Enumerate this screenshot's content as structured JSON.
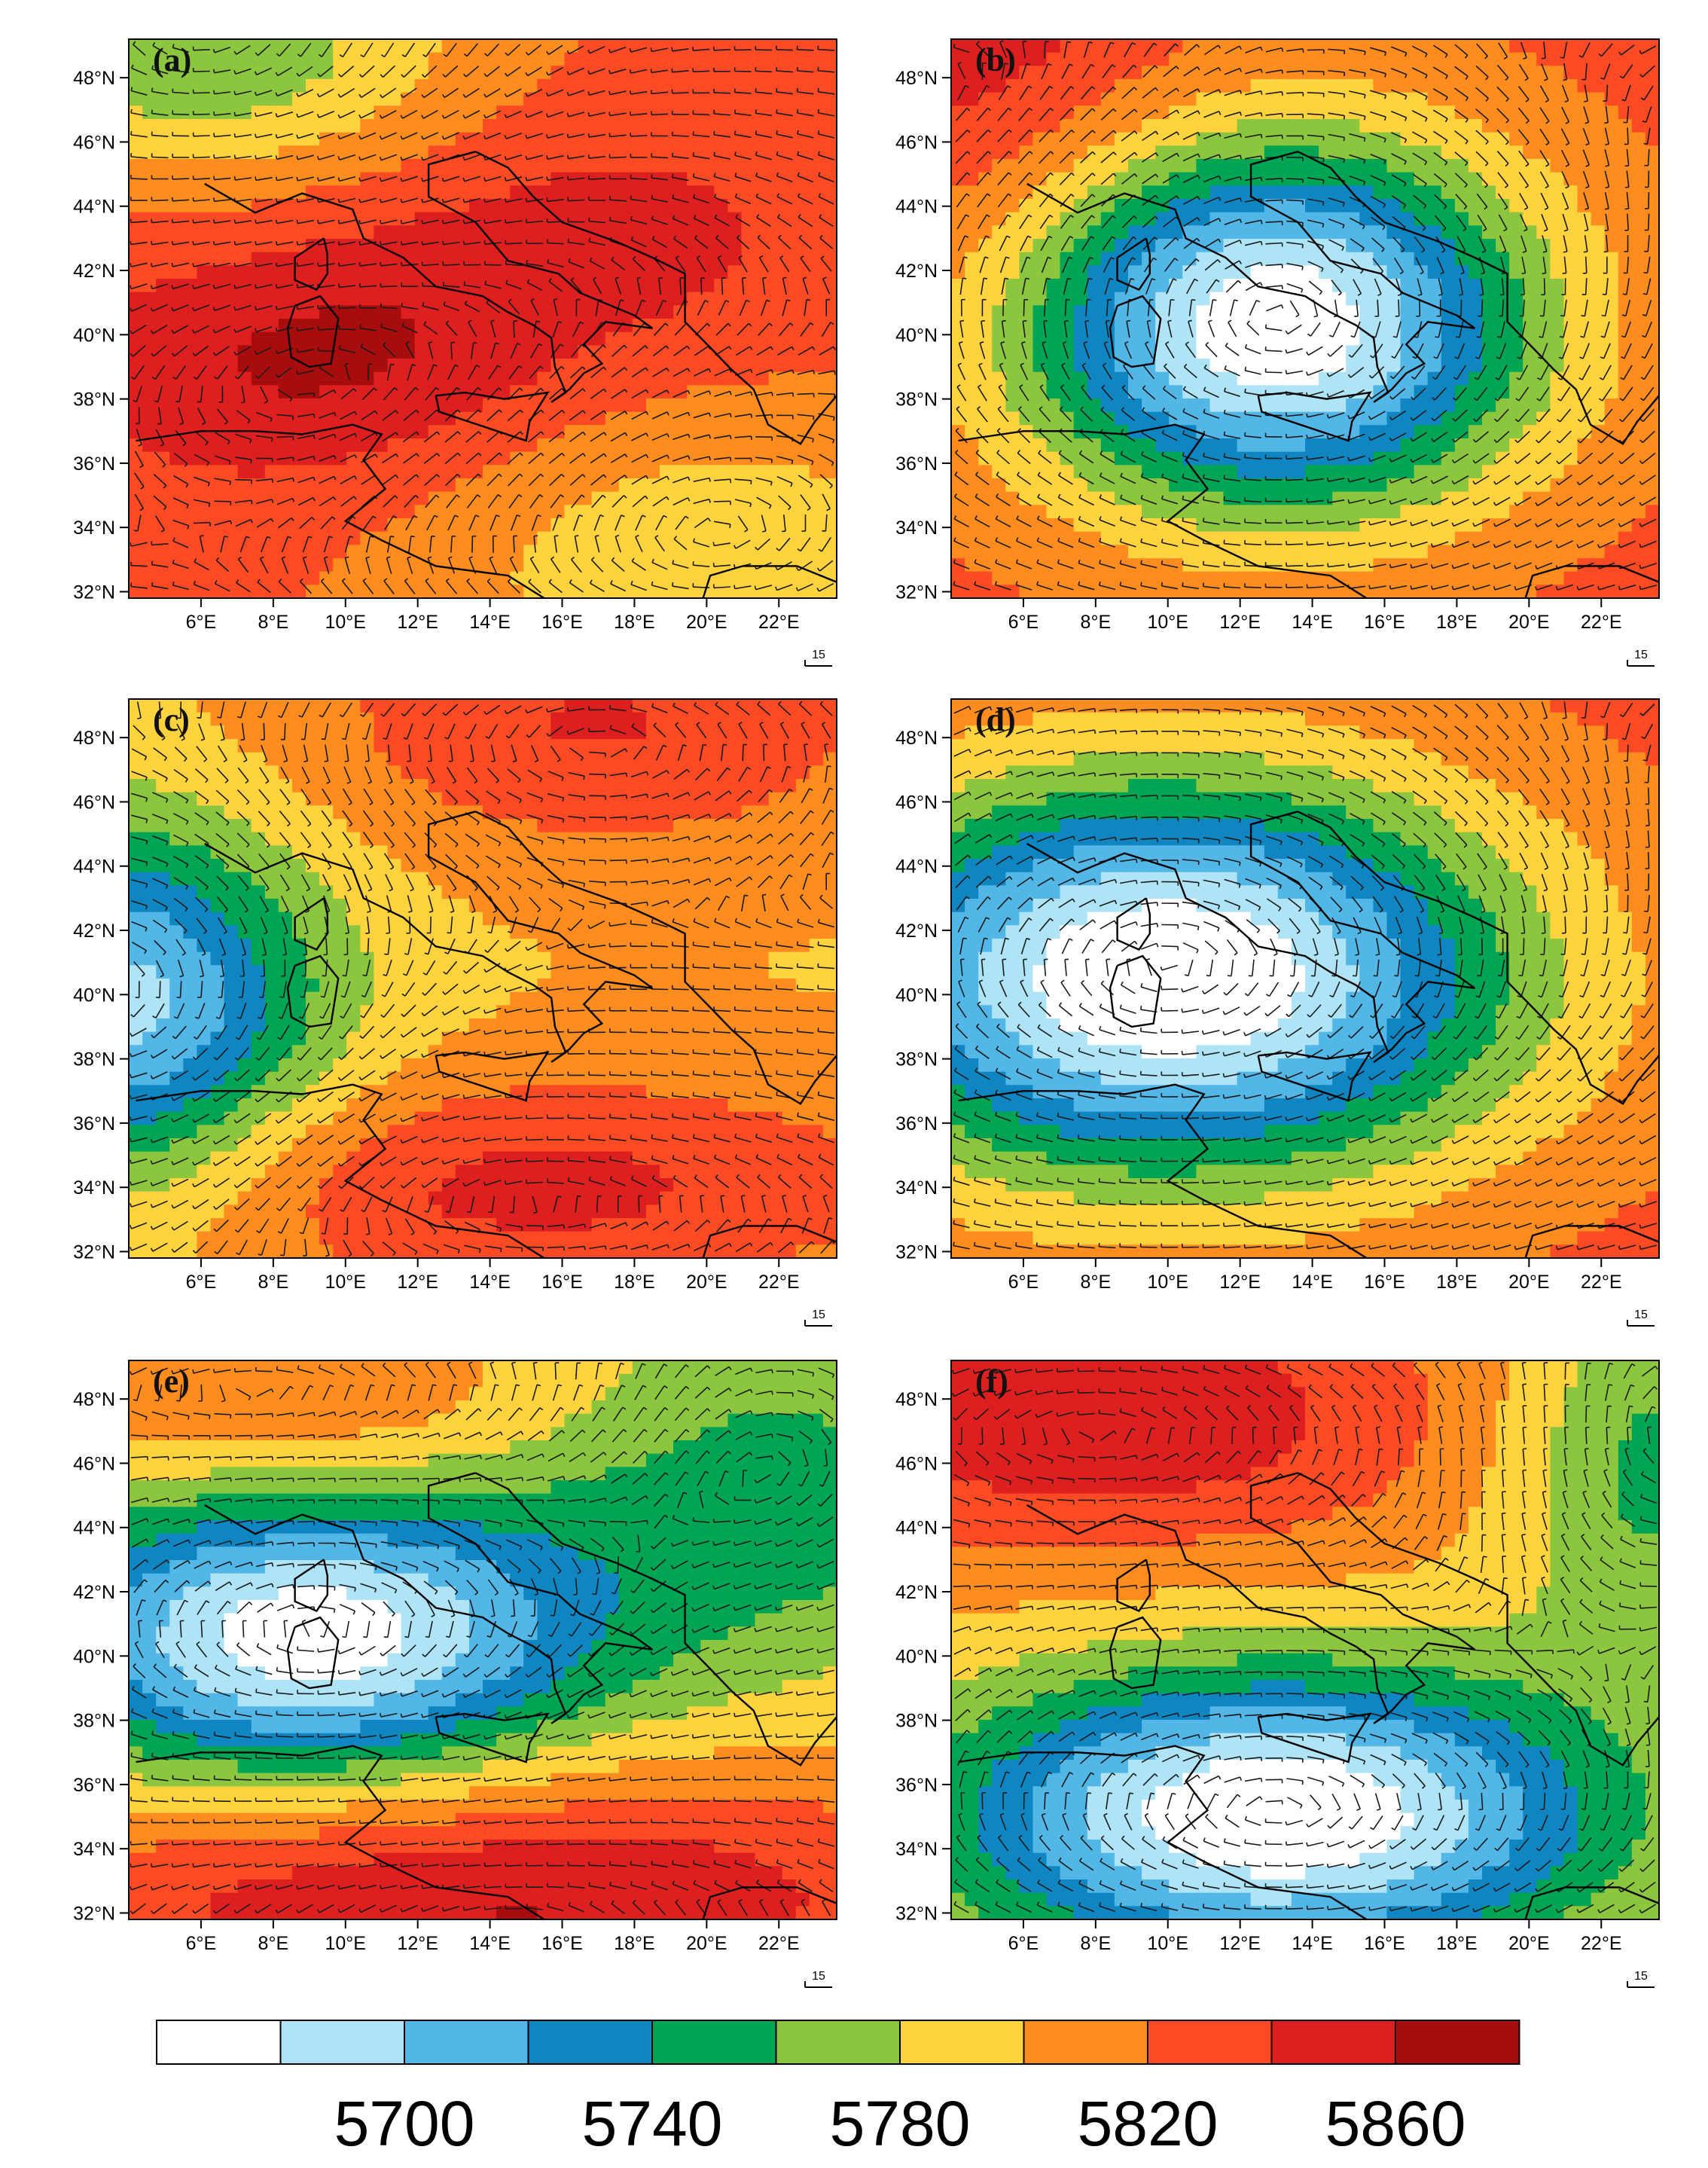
{
  "figure": {
    "lat_ticks": [
      "48°N",
      "46°N",
      "44°N",
      "42°N",
      "40°N",
      "38°N",
      "36°N",
      "34°N",
      "32°N"
    ],
    "lon_ticks": [
      "6°E",
      "8°E",
      "10°E",
      "12°E",
      "14°E",
      "16°E",
      "18°E",
      "20°E",
      "22°E"
    ],
    "reference_vector_label": "15",
    "colors": [
      "#ffffff",
      "#aee4f6",
      "#52b6e6",
      "#0f86c1",
      "#00a553",
      "#8bc63e",
      "#ffd33d",
      "#ff8c1f",
      "#fb4a24",
      "#dd1f1f",
      "#a80d0d"
    ],
    "colorbar": {
      "labels": [
        "5700",
        "5740",
        "5780",
        "5820",
        "5860"
      ]
    }
  },
  "chart_data": {
    "type": "heatmap",
    "field": "geopotential height contours with wind barbs",
    "domain_lon": [
      4,
      23.6
    ],
    "domain_lat": [
      31.8,
      49.2
    ],
    "levels": [
      5690,
      5700,
      5710,
      5720,
      5730,
      5740,
      5750,
      5760,
      5770,
      5780,
      5790,
      5800,
      5810,
      5820,
      5830,
      5840,
      5850,
      5860
    ],
    "colorbar_labels": [
      5700,
      5740,
      5780,
      5820,
      5860
    ],
    "panels": [
      {
        "label": "(a)",
        "base": 5832,
        "features": [
          {
            "type": "high",
            "lon": 9,
            "lat": 39,
            "amp": 30,
            "sx": 5,
            "sy": 3
          },
          {
            "type": "high",
            "lon": 17,
            "lat": 43,
            "amp": 18,
            "sx": 5,
            "sy": 3
          },
          {
            "type": "low",
            "lon": 20,
            "lat": 33,
            "amp": 35,
            "sx": 6,
            "sy": 3.5
          },
          {
            "type": "low",
            "lon": 6,
            "lat": 49,
            "amp": 55,
            "sx": 5,
            "sy": 3
          }
        ]
      },
      {
        "label": "(b)",
        "base": 5836,
        "features": [
          {
            "type": "low",
            "lon": 13,
            "lat": 40.3,
            "amp": 145,
            "sx": 5.2,
            "sy": 4.2
          },
          {
            "type": "high",
            "lon": 5,
            "lat": 48,
            "amp": 20,
            "sx": 4,
            "sy": 4
          }
        ]
      },
      {
        "label": "(c)",
        "base": 5808,
        "features": [
          {
            "type": "low",
            "lon": 3.5,
            "lat": 39.5,
            "amp": 95,
            "sx": 4,
            "sy": 4
          },
          {
            "type": "high",
            "lon": 17,
            "lat": 48.5,
            "amp": 38,
            "sx": 6,
            "sy": 3
          },
          {
            "type": "high",
            "lon": 15,
            "lat": 34,
            "amp": 42,
            "sx": 8,
            "sy": 2.6
          }
        ]
      },
      {
        "label": "(d)",
        "base": 5836,
        "features": [
          {
            "type": "low",
            "lon": 10,
            "lat": 40.5,
            "amp": 150,
            "sx": 7,
            "sy": 4.5
          }
        ]
      },
      {
        "label": "(e)",
        "base": 5808,
        "features": [
          {
            "type": "low",
            "lon": 9,
            "lat": 40.5,
            "amp": 115,
            "sx": 5.5,
            "sy": 3.2
          },
          {
            "type": "high",
            "lon": 14,
            "lat": 32.5,
            "amp": 55,
            "sx": 10,
            "sy": 3
          },
          {
            "type": "low",
            "lon": 22,
            "lat": 45,
            "amp": 40,
            "sx": 5,
            "sy": 4
          },
          {
            "type": "high",
            "lon": 8,
            "lat": 48,
            "amp": 25,
            "sx": 5,
            "sy": 2
          }
        ]
      },
      {
        "label": "(f)",
        "base": 5812,
        "features": [
          {
            "type": "low",
            "lon": 13,
            "lat": 35,
            "amp": 125,
            "sx": 6.5,
            "sy": 3.2
          },
          {
            "type": "high",
            "lon": 8,
            "lat": 47.5,
            "amp": 48,
            "sx": 7,
            "sy": 3
          },
          {
            "type": "low",
            "lon": 23.5,
            "lat": 46,
            "amp": 45,
            "sx": 3,
            "sy": 4
          }
        ]
      }
    ]
  }
}
